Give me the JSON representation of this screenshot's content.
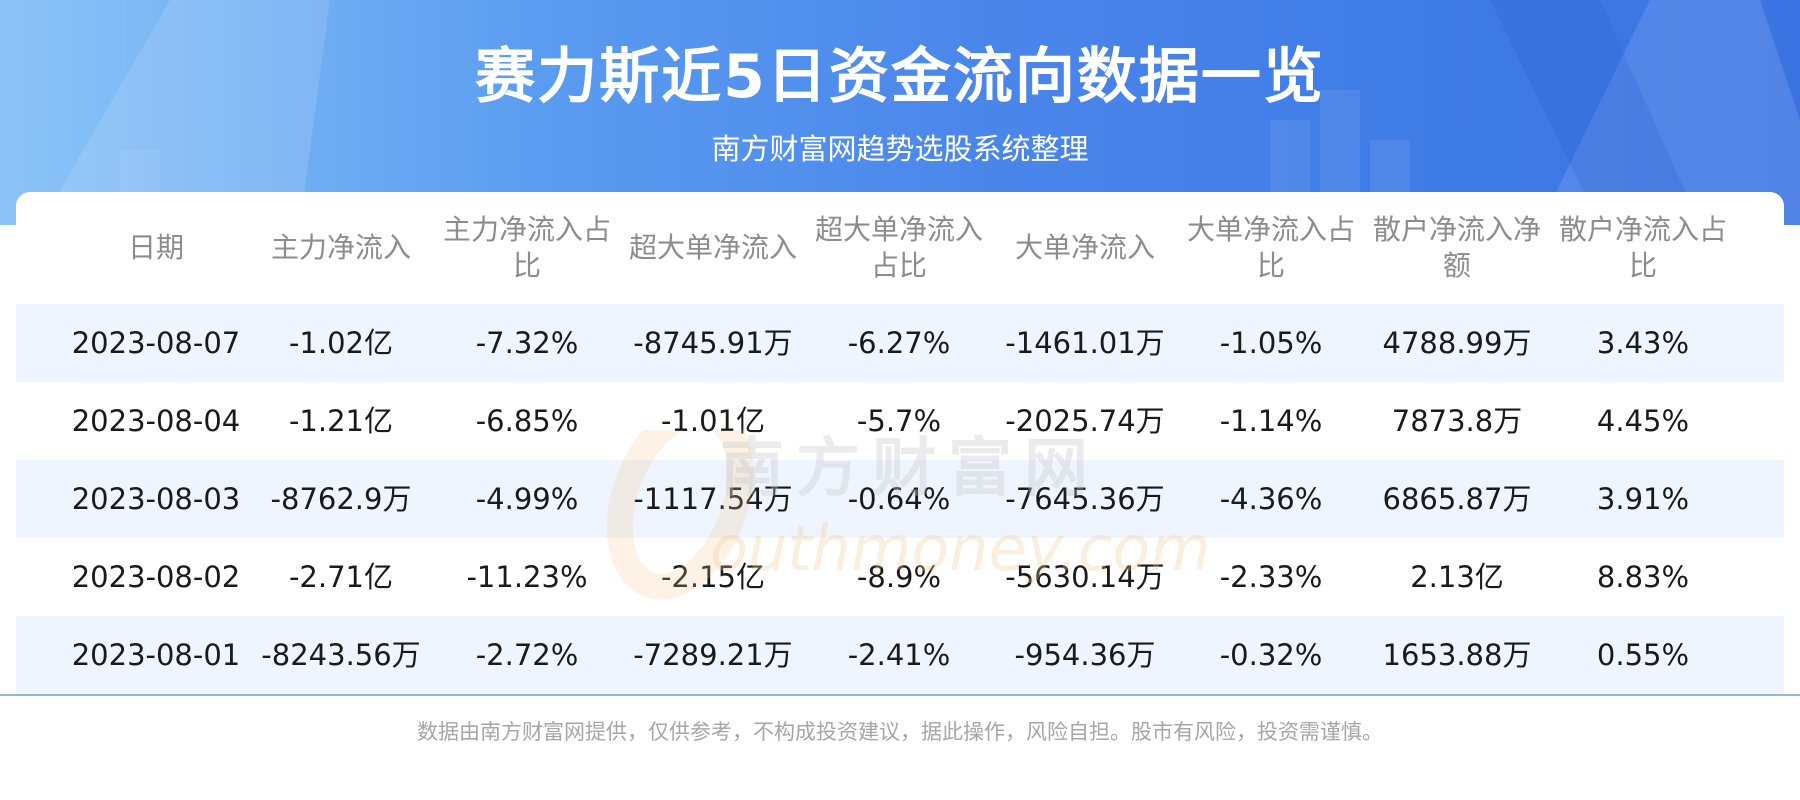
{
  "header": {
    "title": "赛力斯近5日资金流向数据一览",
    "subtitle": "南方财富网趋势选股系统整理"
  },
  "table": {
    "columns": [
      "日期",
      "主力净流入",
      "主力净流入占比",
      "超大单净流入",
      "超大单净流入占比",
      "大单净流入",
      "大单净流入占比",
      "散户净流入净额",
      "散户净流入占比"
    ],
    "rows": [
      [
        "2023-08-07",
        "-1.02亿",
        "-7.32%",
        "-8745.91万",
        "-6.27%",
        "-1461.01万",
        "-1.05%",
        "4788.99万",
        "3.43%"
      ],
      [
        "2023-08-04",
        "-1.21亿",
        "-6.85%",
        "-1.01亿",
        "-5.7%",
        "-2025.74万",
        "-1.14%",
        "7873.8万",
        "4.45%"
      ],
      [
        "2023-08-03",
        "-8762.9万",
        "-4.99%",
        "-1117.54万",
        "-0.64%",
        "-7645.36万",
        "-4.36%",
        "6865.87万",
        "3.91%"
      ],
      [
        "2023-08-02",
        "-2.71亿",
        "-11.23%",
        "-2.15亿",
        "-8.9%",
        "-5630.14万",
        "-2.33%",
        "2.13亿",
        "8.83%"
      ],
      [
        "2023-08-01",
        "-8243.56万",
        "-2.72%",
        "-7289.21万",
        "-2.41%",
        "-954.36万",
        "-0.32%",
        "1653.88万",
        "0.55%"
      ]
    ]
  },
  "watermark": {
    "line1": "南方财富网",
    "line2": "outhmoney.com"
  },
  "footer": {
    "disclaimer": "数据由南方财富网提供，仅供参考，不构成投资建议，据此操作，风险自担。股市有风险，投资需谨慎。"
  },
  "colors": {
    "banner": "#4a86ea",
    "row_alt": "#eef5fe",
    "header_text": "#8c8c8c"
  }
}
